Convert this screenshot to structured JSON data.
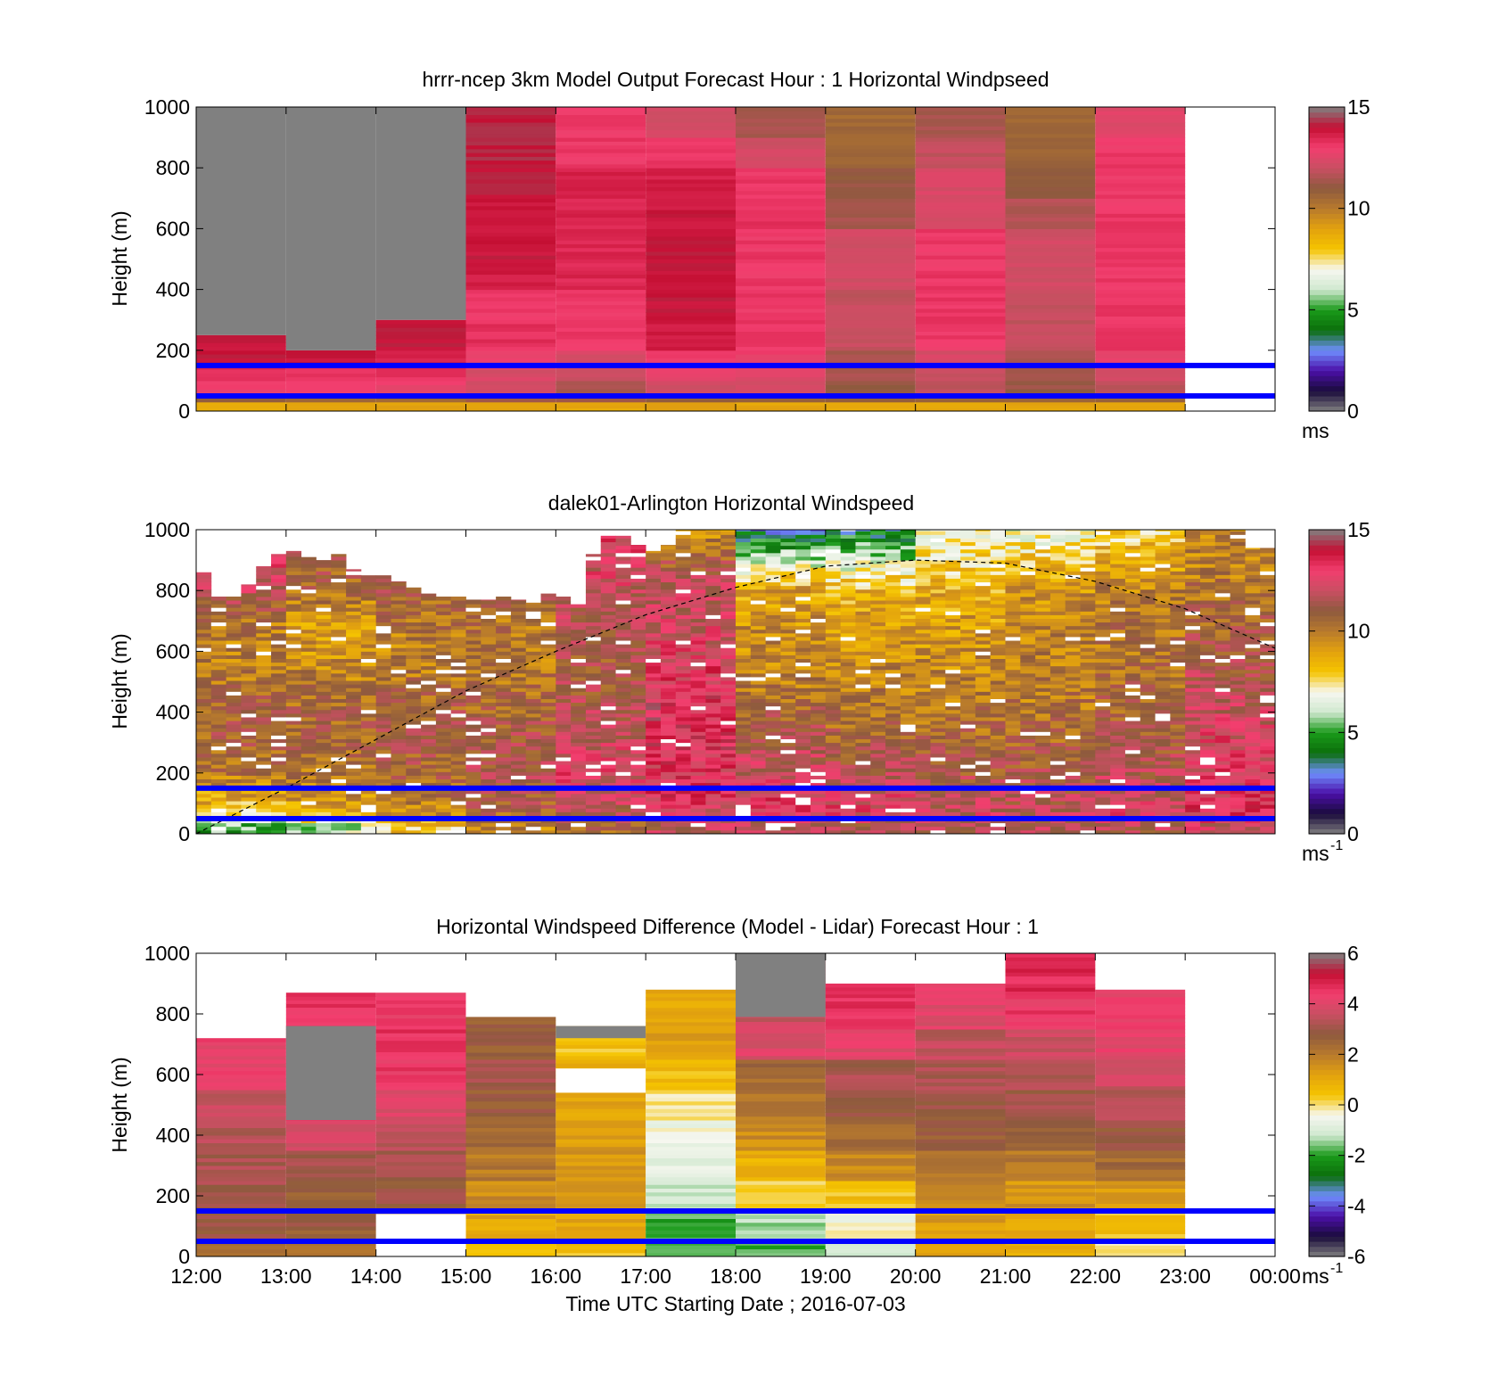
{
  "colors": {
    "background": "#ffffff",
    "missing": "#808080",
    "reference_line": "#0000ff",
    "speed_scale": [
      "#808080",
      "#1a0b3b",
      "#4b0fa8",
      "#6f8fff",
      "#0b6e0b",
      "#1a9a1a",
      "#cfe8cf",
      "#f7f7f0",
      "#f5c400",
      "#e3a20e",
      "#b87a2d",
      "#8e5a3e",
      "#c94f62",
      "#f23e6e",
      "#c40f33",
      "#808080"
    ],
    "diff_scale": [
      "#808080",
      "#1a0b3b",
      "#4b0fa8",
      "#6f8fff",
      "#0b6e0b",
      "#1a9a1a",
      "#cfe8cf",
      "#f7f7f0",
      "#f5c400",
      "#e3a20e",
      "#b87a2d",
      "#8e5a3e",
      "#c94f62",
      "#f23e6e",
      "#c40f33",
      "#808080"
    ]
  },
  "xlabel": "Time UTC  Starting Date ; 2016-07-03",
  "x_tick_labels": [
    "12:00",
    "13:00",
    "14:00",
    "15:00",
    "16:00",
    "17:00",
    "18:00",
    "19:00",
    "20:00",
    "21:00",
    "22:00",
    "23:00",
    "00:00"
  ],
  "chart_data": [
    {
      "type": "heatmap",
      "title": "hrrr-ncep 3km Model Output   Forecast Hour : 1 Horizontal Windpseed",
      "ylabel": "Height (m)",
      "xlim": [
        "12:00",
        "00:00"
      ],
      "ylim": [
        0,
        1000
      ],
      "y_tick_labels": [
        "0",
        "200",
        "400",
        "600",
        "800",
        "1000"
      ],
      "colorbar": {
        "range": [
          0,
          15
        ],
        "tick_labels": [
          "0",
          "5",
          "10",
          "15"
        ],
        "unit": "ms"
      },
      "reference_lines_m": [
        150,
        50
      ],
      "time_columns": [
        "12:00",
        "13:00",
        "14:00",
        "15:00",
        "16:00",
        "17:00",
        "18:00",
        "19:00",
        "20:00",
        "21:00",
        "22:00"
      ],
      "column_minutes": 60,
      "data_top_m": [
        250,
        200,
        300,
        1000,
        1000,
        1000,
        1000,
        1000,
        1000,
        1000,
        1000
      ],
      "missing_above_top": [
        true,
        true,
        true,
        false,
        false,
        false,
        false,
        false,
        false,
        false,
        false
      ],
      "level_tops_m": [
        30,
        60,
        100,
        150,
        200,
        300,
        400,
        500,
        600,
        700,
        800,
        900,
        1000
      ],
      "values": [
        [
          9,
          11,
          13.5,
          13.8,
          14.5
        ],
        [
          9,
          11,
          13.5,
          13.8,
          14.5
        ],
        [
          9,
          11,
          13.3,
          13.8,
          14.2,
          14.5
        ],
        [
          9,
          11.5,
          12.5,
          12.8,
          13.2,
          13.8,
          13.5,
          14.3,
          14.5,
          14.5,
          14.6,
          14.7,
          14.7
        ],
        [
          9,
          11.5,
          11.8,
          12.5,
          12.8,
          13.6,
          13.6,
          14.0,
          14.0,
          14.1,
          14.2,
          13.6,
          13.6
        ],
        [
          9,
          11,
          12.6,
          13.2,
          13.6,
          14.2,
          14.5,
          14.6,
          14.6,
          14.4,
          14.2,
          13.6,
          12.6
        ],
        [
          9,
          11,
          12.7,
          13.0,
          13.4,
          13.6,
          13.6,
          13.6,
          13.6,
          13.8,
          13.6,
          12.6,
          11.8
        ],
        [
          9,
          11,
          11.5,
          11.8,
          11.8,
          12.3,
          12.3,
          12.6,
          12.6,
          11.8,
          11.4,
          10.8,
          10.8
        ],
        [
          9,
          11,
          12.2,
          12.5,
          12.8,
          13.6,
          13.6,
          13.6,
          13.6,
          12.8,
          12.8,
          12.3,
          11.8
        ],
        [
          9,
          11,
          11.5,
          11.8,
          12.0,
          12.3,
          12.3,
          12.6,
          12.6,
          12.0,
          11.4,
          11.0,
          10.8
        ],
        [
          9,
          11,
          12.2,
          12.8,
          13.2,
          13.6,
          13.6,
          13.6,
          13.6,
          13.6,
          13.6,
          13.6,
          13.0
        ]
      ]
    },
    {
      "type": "heatmap",
      "title": "dalek01-Arlington  Horizontal Windspeed",
      "ylabel": "Height (m)",
      "xlim": [
        "12:00",
        "00:00"
      ],
      "ylim": [
        0,
        1000
      ],
      "y_tick_labels": [
        "0",
        "200",
        "400",
        "600",
        "800",
        "1000"
      ],
      "colorbar": {
        "range": [
          0,
          15
        ],
        "tick_labels": [
          "0",
          "5",
          "10",
          "15"
        ],
        "unit": "ms",
        "unit_exponent": "-1"
      },
      "reference_lines_m": [
        150,
        50
      ],
      "time_columns": [
        "12:00",
        "12:10",
        "12:20",
        "12:30",
        "12:40",
        "12:50",
        "13:00",
        "13:10",
        "13:20",
        "13:30",
        "13:40",
        "13:50",
        "14:00",
        "14:10",
        "14:20",
        "14:30",
        "14:40",
        "14:50",
        "15:00",
        "15:10",
        "15:20",
        "15:30",
        "15:40",
        "15:50",
        "16:00",
        "16:10",
        "16:20",
        "16:30",
        "16:40",
        "16:50",
        "17:00",
        "17:10",
        "17:20",
        "17:30",
        "17:40",
        "17:50",
        "18:00",
        "18:10",
        "18:20",
        "18:30",
        "18:40",
        "18:50",
        "19:00",
        "19:10",
        "19:20",
        "19:30",
        "19:40",
        "19:50",
        "20:00",
        "20:10",
        "20:20",
        "20:30",
        "20:40",
        "20:50",
        "21:00",
        "21:10",
        "21:20",
        "21:30",
        "21:40",
        "21:50",
        "22:00",
        "22:10",
        "22:20",
        "22:30",
        "22:40",
        "22:50",
        "23:00",
        "23:10",
        "23:20",
        "23:30",
        "23:40",
        "23:50"
      ],
      "column_minutes": 10,
      "data_top_m": [
        860,
        780,
        780,
        820,
        880,
        920,
        930,
        910,
        900,
        920,
        870,
        850,
        850,
        830,
        810,
        790,
        780,
        780,
        770,
        770,
        780,
        770,
        760,
        790,
        780,
        780,
        920,
        980,
        980,
        950,
        930,
        950,
        1000,
        1000,
        1000,
        1000,
        1000,
        1000,
        1000,
        1000,
        1000,
        1000,
        1000,
        1000,
        1000,
        1000,
        1000,
        1000,
        1000,
        1000,
        1000,
        1000,
        1000,
        1000,
        1000,
        1000,
        1000,
        1000,
        1000,
        1000,
        1000,
        1000,
        1000,
        1000,
        1000,
        1000,
        1000,
        1000,
        1000,
        1000,
        940,
        940
      ],
      "boundary_layer_curve": {
        "style": "dashed",
        "x": [
          "12:00",
          "13:00",
          "14:00",
          "15:00",
          "16:00",
          "17:00",
          "18:00",
          "19:00",
          "20:00",
          "21:00",
          "22:00",
          "23:00",
          "00:00"
        ],
        "y": [
          0,
          150,
          310,
          470,
          600,
          720,
          810,
          880,
          900,
          890,
          830,
          740,
          610
        ]
      },
      "profile_levels_m": [
        20,
        60,
        120,
        200,
        300,
        400,
        500,
        600,
        700,
        800,
        900,
        1000
      ],
      "profiles_by_hour": [
        {
          "hour": "12:00",
          "values": [
            5,
            8,
            9,
            10.5,
            11,
            11.2,
            10.5,
            10,
            10.5,
            12.5,
            13.5,
            14
          ]
        },
        {
          "hour": "13:00",
          "values": [
            6,
            8.5,
            9.5,
            10.5,
            11,
            11,
            10.2,
            9.5,
            9.2,
            10.8,
            11.5,
            12
          ]
        },
        {
          "hour": "14:00",
          "values": [
            8,
            10,
            10.5,
            11,
            11.5,
            11.2,
            10.5,
            10,
            10.5,
            11.2,
            12.5,
            13
          ]
        },
        {
          "hour": "15:00",
          "values": [
            10,
            11,
            11.5,
            11.8,
            11.5,
            11,
            10.5,
            10.2,
            10.5,
            11.5,
            12.5,
            13
          ]
        },
        {
          "hour": "16:00",
          "values": [
            11,
            12,
            12.8,
            13,
            12.5,
            12,
            11.5,
            11.5,
            12,
            12.5,
            13,
            13.5
          ]
        },
        {
          "hour": "17:00",
          "values": [
            12,
            13,
            13.5,
            13.5,
            13.8,
            14,
            13.5,
            13,
            12.5,
            12.5,
            11,
            9.5
          ]
        },
        {
          "hour": "18:00",
          "values": [
            12,
            13,
            13.2,
            12.5,
            11.8,
            11,
            10.2,
            9.8,
            9.5,
            9,
            6,
            3
          ]
        },
        {
          "hour": "19:00",
          "values": [
            12,
            13,
            12.8,
            12,
            11.2,
            10.5,
            10,
            9.6,
            9.2,
            8.5,
            6,
            3.5
          ]
        },
        {
          "hour": "20:00",
          "values": [
            12,
            12.5,
            12.3,
            11.5,
            11,
            10.5,
            10,
            9.6,
            9.2,
            8.8,
            7.5,
            7
          ]
        },
        {
          "hour": "21:00",
          "values": [
            12,
            12.3,
            12,
            11.5,
            11,
            10.5,
            10.2,
            10,
            9.8,
            9.5,
            8,
            6.5
          ]
        },
        {
          "hour": "22:00",
          "values": [
            12,
            12.8,
            12.5,
            12,
            11.5,
            11,
            10.8,
            10.5,
            10.5,
            10,
            9,
            7.5
          ]
        },
        {
          "hour": "23:00",
          "values": [
            12.5,
            13.5,
            13.5,
            13.2,
            13,
            12.5,
            12,
            11.5,
            11,
            10.5,
            10,
            10
          ]
        }
      ]
    },
    {
      "type": "heatmap",
      "title": "Horizontal Windspeed Difference (Model - Lidar) Forecast Hour : 1",
      "ylabel": "Height (m)",
      "xlabel": "Time UTC  Starting Date ; 2016-07-03",
      "xlim": [
        "12:00",
        "00:00"
      ],
      "ylim": [
        0,
        1000
      ],
      "y_tick_labels": [
        "0",
        "200",
        "400",
        "600",
        "800",
        "1000"
      ],
      "colorbar": {
        "range": [
          -6,
          6
        ],
        "tick_labels": [
          "-6",
          "-4",
          "-2",
          "0",
          "2",
          "4",
          "6"
        ],
        "unit": "ms",
        "unit_exponent": "-1"
      },
      "reference_lines_m": [
        150,
        50
      ],
      "time_columns": [
        "12:00",
        "13:00",
        "14:00",
        "15:00",
        "16:00",
        "17:00",
        "18:00",
        "19:00",
        "20:00",
        "21:00",
        "22:00"
      ],
      "column_minutes": 60,
      "data_top_m": [
        720,
        870,
        870,
        790,
        760,
        880,
        1000,
        900,
        900,
        1000,
        880
      ],
      "missing_bands_m": [
        [
          0,
          0
        ],
        [
          450,
          760
        ],
        [
          0,
          0
        ],
        [
          0,
          0
        ],
        [
          720,
          760
        ],
        [
          0,
          0
        ],
        [
          790,
          1000
        ],
        [
          0,
          0
        ],
        [
          0,
          0
        ],
        [
          0,
          0
        ],
        [
          0,
          0
        ]
      ],
      "white_gaps_m": [
        [
          0,
          0
        ],
        [
          0,
          0
        ],
        [
          0,
          140
        ],
        [
          0,
          0
        ],
        [
          540,
          620
        ],
        [
          0,
          0
        ],
        [
          0,
          0
        ],
        [
          0,
          0
        ],
        [
          0,
          0
        ],
        [
          0,
          0
        ],
        [
          0,
          0
        ]
      ],
      "level_tops_m": [
        50,
        150,
        250,
        350,
        450,
        550,
        650,
        750,
        850,
        950,
        1000
      ],
      "values": [
        [
          2.8,
          3.2,
          3.4,
          3.5,
          3.6,
          3.9,
          4.5,
          4.6
        ],
        [
          2.2,
          3.0,
          3.0,
          3.4,
          4.2,
          4.6,
          4.8,
          4.8,
          4.9
        ],
        [
          2.8,
          2.8,
          3.2,
          3.4,
          3.8,
          4.2,
          4.8,
          4.9,
          4.9
        ],
        [
          0.3,
          1.2,
          1.8,
          2.2,
          2.6,
          3.0,
          3.3,
          3.0
        ],
        [
          0.6,
          1.2,
          1.5,
          1.6,
          1.4,
          1.2,
          1.0,
          0.5
        ],
        [
          -2.2,
          -2.0,
          -1.2,
          -0.8,
          -0.5,
          -0.2,
          0.6,
          1.5,
          1.2
        ],
        [
          -2.0,
          -1.5,
          0.3,
          1.0,
          1.8,
          2.2,
          2.6,
          4.3,
          4.0,
          4.0
        ],
        [
          -1.0,
          -0.5,
          0.5,
          1.8,
          2.6,
          3.0,
          3.4,
          4.4,
          5.0
        ],
        [
          1.4,
          1.4,
          1.8,
          2.4,
          3.0,
          3.2,
          3.4,
          3.8,
          4.4
        ],
        [
          1.0,
          1.2,
          1.6,
          2.2,
          3.0,
          3.3,
          3.5,
          4.0,
          4.8,
          5.2,
          5.3
        ],
        [
          0.0,
          0.5,
          1.5,
          2.6,
          3.2,
          3.5,
          4.0,
          4.5,
          4.6
        ]
      ]
    }
  ]
}
